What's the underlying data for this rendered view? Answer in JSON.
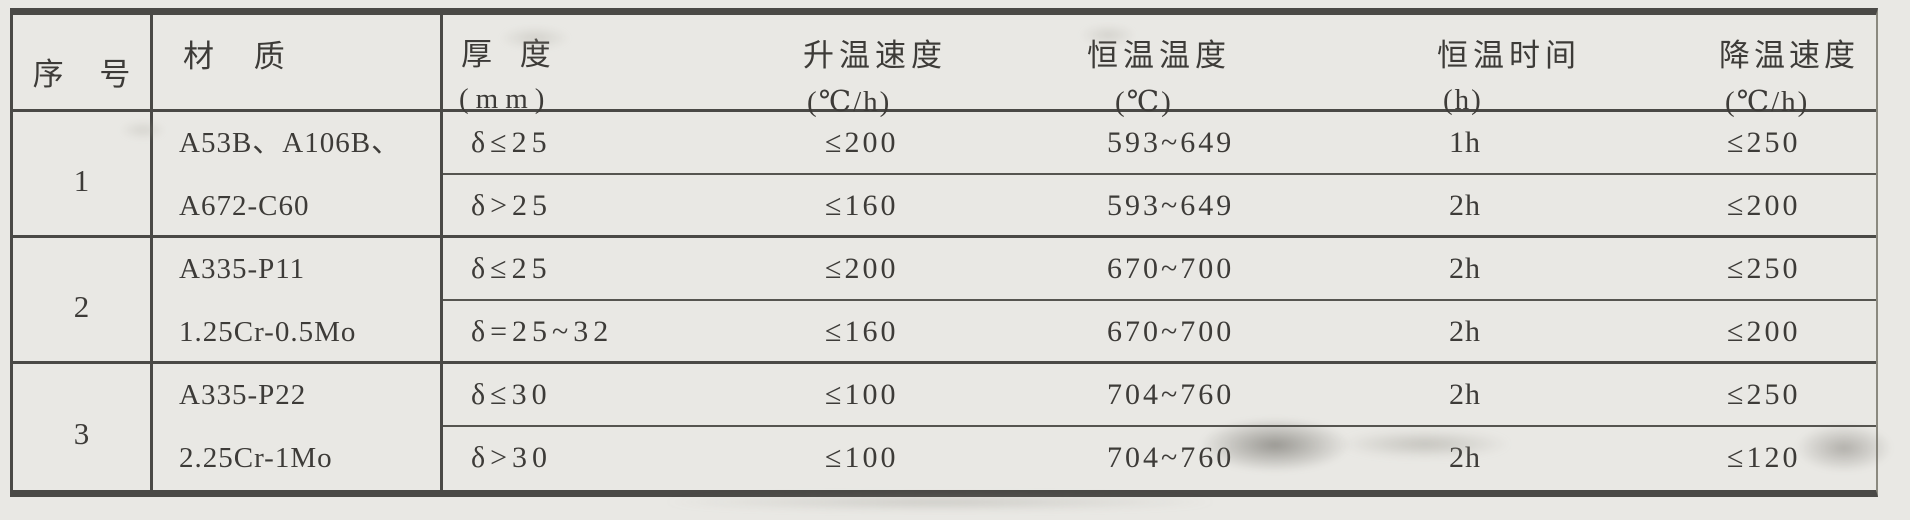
{
  "page": {
    "background_color": "#e9e8e4",
    "ink_color": "#3d3b38",
    "line_color": "#4a4946"
  },
  "table": {
    "headers": [
      {
        "title": "序 号",
        "unit": ""
      },
      {
        "title": "材 质",
        "unit": ""
      },
      {
        "title": "厚 度",
        "unit": "(mm)"
      },
      {
        "title": "升温速度",
        "unit": "(℃/h)"
      },
      {
        "title": "恒温温度",
        "unit": "(℃)"
      },
      {
        "title": "恒温时间",
        "unit": "(h)"
      },
      {
        "title": "降温速度",
        "unit": "(℃/h)"
      }
    ],
    "groups": [
      {
        "no": "1",
        "material_line1": "A53B、A106B、",
        "material_line2": "A672-C60",
        "rows": [
          {
            "thickness": "δ≤25",
            "heating_rate": "≤200",
            "holding_temp": "593~649",
            "holding_time": "1h",
            "cooling_rate": "≤250"
          },
          {
            "thickness": "δ>25",
            "heating_rate": "≤160",
            "holding_temp": "593~649",
            "holding_time": "2h",
            "cooling_rate": "≤200"
          }
        ]
      },
      {
        "no": "2",
        "material_line1": "A335-P11",
        "material_line2": "1.25Cr-0.5Mo",
        "rows": [
          {
            "thickness": "δ≤25",
            "heating_rate": "≤200",
            "holding_temp": "670~700",
            "holding_time": "2h",
            "cooling_rate": "≤250"
          },
          {
            "thickness": "δ=25~32",
            "heating_rate": "≤160",
            "holding_temp": "670~700",
            "holding_time": "2h",
            "cooling_rate": "≤200"
          }
        ]
      },
      {
        "no": "3",
        "material_line1": "A335-P22",
        "material_line2": "2.25Cr-1Mo",
        "rows": [
          {
            "thickness": "δ≤30",
            "heating_rate": "≤100",
            "holding_temp": "704~760",
            "holding_time": "2h",
            "cooling_rate": "≤250"
          },
          {
            "thickness": "δ>30",
            "heating_rate": "≤100",
            "holding_temp": "704~760",
            "holding_time": "2h",
            "cooling_rate": "≤120"
          }
        ]
      }
    ]
  }
}
